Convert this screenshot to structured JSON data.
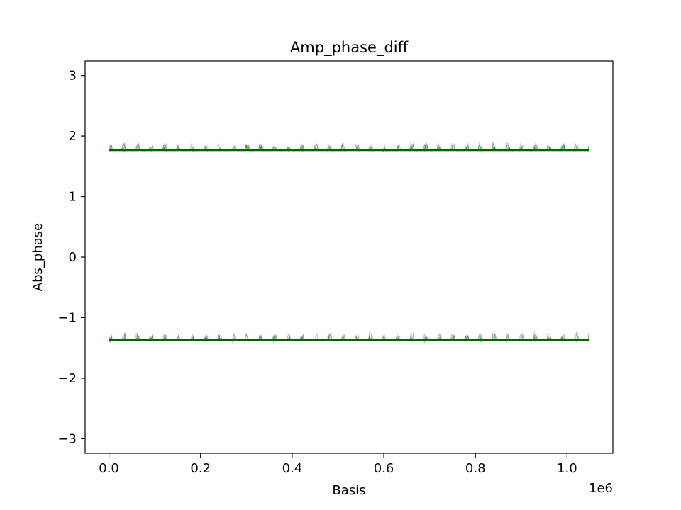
{
  "chart_data": {
    "type": "line",
    "title": "Amp_phase_diff",
    "xlabel": "Basis",
    "ylabel": "Abs_phase",
    "x_offset_label": "1e6",
    "xlim": [
      -0.052,
      1.1
    ],
    "ylim": [
      -3.2416,
      3.2416
    ],
    "x_ticks": [
      0.0,
      0.2,
      0.4,
      0.6,
      0.8,
      1.0
    ],
    "x_tick_labels": [
      "0.0",
      "0.2",
      "0.4",
      "0.6",
      "0.8",
      "1.0"
    ],
    "y_ticks": [
      -3,
      -2,
      -1,
      0,
      1,
      2,
      3
    ],
    "y_tick_labels": [
      "−3",
      "−2",
      "−1",
      "0",
      "1",
      "2",
      "3"
    ],
    "x_range": [
      0.0,
      1.048
    ],
    "grid": false,
    "color": "#006400",
    "series": [
      {
        "level": 1.77,
        "jitter_up": 0.13,
        "jitter_down": 0.06
      },
      {
        "level": -1.37,
        "jitter_up": 0.13,
        "jitter_down": 0.08
      }
    ]
  }
}
